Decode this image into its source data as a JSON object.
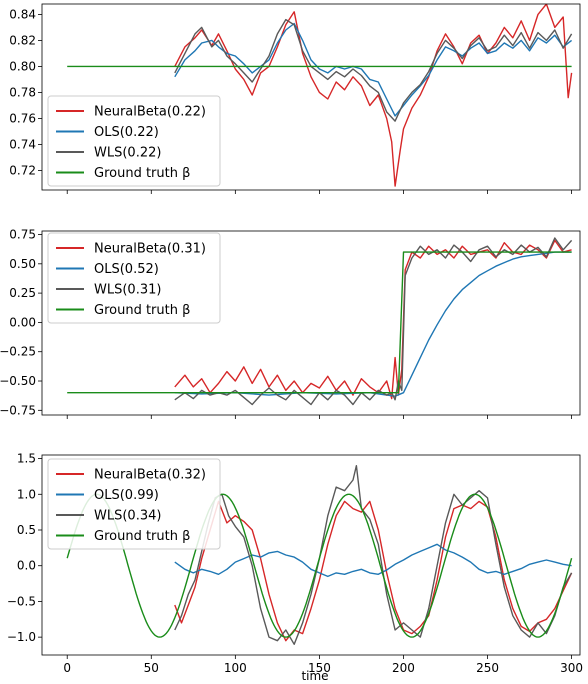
{
  "colors": {
    "neuralbeta": "#d62728",
    "ols": "#1f77b4",
    "wls": "#595959",
    "ground_truth": "#1a8c1a"
  },
  "chart_data": [
    {
      "type": "line",
      "xlabel": "",
      "ylabel": "",
      "xlim": [
        -15,
        305
      ],
      "ylim": [
        0.705,
        0.848
      ],
      "xticks": [
        0,
        50,
        100,
        150,
        200,
        250,
        300
      ],
      "yticks": [
        0.72,
        0.74,
        0.76,
        0.78,
        0.8,
        0.82,
        0.84
      ],
      "ytick_labels": [
        "0.72",
        "0.74",
        "0.76",
        "0.78",
        "0.80",
        "0.82",
        "0.84"
      ],
      "legend_position": "lower-left",
      "grid": false,
      "series": [
        {
          "name": "NeuralBeta(0.22)",
          "key": "neuralbeta",
          "x": [
            64,
            70,
            76,
            80,
            86,
            90,
            95,
            100,
            105,
            110,
            115,
            120,
            125,
            130,
            135,
            140,
            145,
            150,
            155,
            160,
            165,
            170,
            175,
            180,
            185,
            190,
            193,
            195,
            198,
            200,
            205,
            210,
            215,
            220,
            225,
            230,
            235,
            240,
            245,
            250,
            255,
            260,
            265,
            270,
            275,
            280,
            285,
            290,
            295,
            298,
            300
          ],
          "y": [
            0.8,
            0.815,
            0.822,
            0.828,
            0.816,
            0.825,
            0.812,
            0.798,
            0.79,
            0.778,
            0.795,
            0.8,
            0.815,
            0.832,
            0.842,
            0.81,
            0.792,
            0.78,
            0.775,
            0.788,
            0.782,
            0.792,
            0.785,
            0.77,
            0.778,
            0.76,
            0.742,
            0.708,
            0.735,
            0.752,
            0.768,
            0.778,
            0.792,
            0.812,
            0.825,
            0.815,
            0.802,
            0.818,
            0.824,
            0.81,
            0.818,
            0.83,
            0.822,
            0.835,
            0.82,
            0.84,
            0.848,
            0.83,
            0.838,
            0.776,
            0.795
          ]
        },
        {
          "name": "OLS(0.22)",
          "key": "ols",
          "x": [
            64,
            70,
            76,
            80,
            86,
            90,
            95,
            100,
            105,
            110,
            115,
            120,
            125,
            130,
            135,
            140,
            145,
            150,
            155,
            160,
            165,
            170,
            175,
            180,
            185,
            190,
            195,
            200,
            205,
            210,
            215,
            220,
            225,
            230,
            235,
            240,
            245,
            250,
            255,
            260,
            265,
            270,
            275,
            280,
            285,
            290,
            295,
            300
          ],
          "y": [
            0.792,
            0.805,
            0.812,
            0.818,
            0.82,
            0.815,
            0.81,
            0.808,
            0.802,
            0.795,
            0.8,
            0.805,
            0.818,
            0.828,
            0.833,
            0.82,
            0.805,
            0.798,
            0.795,
            0.8,
            0.798,
            0.8,
            0.798,
            0.79,
            0.788,
            0.775,
            0.762,
            0.77,
            0.778,
            0.785,
            0.793,
            0.805,
            0.815,
            0.812,
            0.808,
            0.814,
            0.818,
            0.81,
            0.812,
            0.818,
            0.814,
            0.82,
            0.812,
            0.822,
            0.818,
            0.824,
            0.815,
            0.82
          ]
        },
        {
          "name": "WLS(0.22)",
          "key": "wls",
          "x": [
            64,
            70,
            76,
            80,
            86,
            90,
            95,
            100,
            105,
            110,
            115,
            120,
            125,
            130,
            135,
            140,
            145,
            150,
            155,
            160,
            165,
            170,
            175,
            180,
            185,
            190,
            195,
            200,
            205,
            210,
            215,
            220,
            225,
            230,
            235,
            240,
            245,
            250,
            255,
            260,
            265,
            270,
            275,
            280,
            285,
            290,
            295,
            300
          ],
          "y": [
            0.795,
            0.81,
            0.825,
            0.83,
            0.815,
            0.82,
            0.808,
            0.802,
            0.795,
            0.788,
            0.798,
            0.808,
            0.825,
            0.836,
            0.832,
            0.812,
            0.8,
            0.795,
            0.79,
            0.796,
            0.792,
            0.798,
            0.793,
            0.785,
            0.78,
            0.765,
            0.758,
            0.772,
            0.78,
            0.786,
            0.796,
            0.81,
            0.82,
            0.814,
            0.806,
            0.816,
            0.822,
            0.812,
            0.815,
            0.824,
            0.816,
            0.826,
            0.814,
            0.826,
            0.82,
            0.828,
            0.814,
            0.825
          ]
        },
        {
          "name": "Ground truth β",
          "key": "ground_truth",
          "x": [
            0,
            300
          ],
          "y": [
            0.8,
            0.8
          ]
        }
      ]
    },
    {
      "type": "line",
      "xlabel": "",
      "ylabel": "",
      "xlim": [
        -15,
        305
      ],
      "ylim": [
        -0.79,
        0.78
      ],
      "xticks": [
        0,
        50,
        100,
        150,
        200,
        250,
        300
      ],
      "yticks": [
        -0.75,
        -0.5,
        -0.25,
        0.0,
        0.25,
        0.5,
        0.75
      ],
      "ytick_labels": [
        "−0.75",
        "−0.50",
        "−0.25",
        "0.00",
        "0.25",
        "0.50",
        "0.75"
      ],
      "legend_position": "upper-left",
      "grid": false,
      "series": [
        {
          "name": "NeuralBeta(0.31)",
          "key": "neuralbeta",
          "x": [
            64,
            70,
            75,
            80,
            85,
            90,
            95,
            100,
            105,
            110,
            115,
            120,
            125,
            130,
            135,
            140,
            145,
            150,
            155,
            160,
            165,
            170,
            175,
            180,
            185,
            190,
            193,
            195,
            197,
            199,
            201,
            205,
            210,
            215,
            220,
            225,
            230,
            235,
            240,
            245,
            250,
            255,
            260,
            265,
            270,
            275,
            280,
            285,
            290,
            295,
            300
          ],
          "y": [
            -0.55,
            -0.45,
            -0.55,
            -0.48,
            -0.6,
            -0.52,
            -0.42,
            -0.5,
            -0.38,
            -0.52,
            -0.4,
            -0.55,
            -0.45,
            -0.58,
            -0.5,
            -0.6,
            -0.52,
            -0.56,
            -0.46,
            -0.58,
            -0.5,
            -0.62,
            -0.48,
            -0.55,
            -0.6,
            -0.5,
            -0.65,
            -0.3,
            -0.62,
            -0.4,
            0.45,
            0.6,
            0.55,
            0.65,
            0.58,
            0.62,
            0.55,
            0.65,
            0.58,
            0.6,
            0.62,
            0.55,
            0.68,
            0.6,
            0.58,
            0.66,
            0.62,
            0.55,
            0.7,
            0.6,
            0.62
          ]
        },
        {
          "name": "OLS(0.52)",
          "key": "ols",
          "x": [
            64,
            80,
            100,
            120,
            140,
            160,
            180,
            195,
            200,
            205,
            210,
            215,
            220,
            225,
            230,
            235,
            240,
            245,
            250,
            255,
            260,
            265,
            270,
            275,
            280,
            285,
            290,
            295,
            300
          ],
          "y": [
            -0.6,
            -0.61,
            -0.6,
            -0.62,
            -0.6,
            -0.61,
            -0.6,
            -0.63,
            -0.6,
            -0.45,
            -0.3,
            -0.15,
            -0.02,
            0.1,
            0.2,
            0.28,
            0.34,
            0.4,
            0.44,
            0.48,
            0.51,
            0.54,
            0.56,
            0.57,
            0.58,
            0.59,
            0.6,
            0.6,
            0.6
          ]
        },
        {
          "name": "WLS(0.31)",
          "key": "wls",
          "x": [
            64,
            70,
            75,
            80,
            85,
            90,
            95,
            100,
            105,
            110,
            115,
            120,
            125,
            130,
            135,
            140,
            145,
            150,
            155,
            160,
            165,
            170,
            175,
            180,
            185,
            190,
            193,
            195,
            197,
            199,
            201,
            205,
            210,
            215,
            220,
            225,
            230,
            235,
            240,
            245,
            250,
            255,
            260,
            265,
            270,
            275,
            280,
            285,
            290,
            295,
            300
          ],
          "y": [
            -0.66,
            -0.6,
            -0.65,
            -0.58,
            -0.62,
            -0.6,
            -0.62,
            -0.58,
            -0.64,
            -0.7,
            -0.62,
            -0.56,
            -0.62,
            -0.66,
            -0.58,
            -0.64,
            -0.7,
            -0.6,
            -0.66,
            -0.58,
            -0.62,
            -0.7,
            -0.6,
            -0.66,
            -0.58,
            -0.62,
            -0.6,
            -0.66,
            -0.5,
            -0.58,
            0.4,
            0.55,
            0.65,
            0.58,
            0.62,
            0.55,
            0.66,
            0.6,
            0.52,
            0.62,
            0.65,
            0.56,
            0.62,
            0.58,
            0.66,
            0.6,
            0.64,
            0.56,
            0.72,
            0.62,
            0.7
          ]
        },
        {
          "name": "Ground truth β",
          "key": "ground_truth",
          "x": [
            0,
            197,
            200,
            300
          ],
          "y": [
            -0.6,
            -0.6,
            0.6,
            0.6
          ]
        }
      ]
    },
    {
      "type": "line",
      "xlabel": "time",
      "ylabel": "",
      "xlim": [
        -15,
        305
      ],
      "ylim": [
        -1.25,
        1.55
      ],
      "xticks": [
        0,
        50,
        100,
        150,
        200,
        250,
        300
      ],
      "yticks": [
        -1.0,
        -0.5,
        0.0,
        0.5,
        1.0,
        1.5
      ],
      "ytick_labels": [
        "−1.0",
        "−0.5",
        "0.0",
        "0.5",
        "1.0",
        "1.5"
      ],
      "legend_position": "upper-left",
      "grid": false,
      "series": [
        {
          "name": "NeuralBeta(0.32)",
          "key": "neuralbeta",
          "x": [
            64,
            68,
            72,
            76,
            80,
            85,
            90,
            95,
            100,
            105,
            110,
            115,
            120,
            125,
            130,
            135,
            140,
            145,
            150,
            155,
            160,
            165,
            170,
            175,
            180,
            185,
            190,
            195,
            200,
            205,
            210,
            215,
            220,
            225,
            230,
            235,
            240,
            245,
            250,
            255,
            260,
            265,
            270,
            275,
            280,
            285,
            290,
            295,
            300
          ],
          "y": [
            -0.55,
            -0.8,
            -0.55,
            -0.3,
            0.1,
            0.5,
            0.9,
            0.6,
            0.7,
            0.62,
            0.5,
            0.1,
            -0.4,
            -0.8,
            -1.05,
            -0.9,
            -0.95,
            -0.6,
            -0.2,
            0.3,
            0.7,
            0.9,
            0.8,
            0.75,
            0.9,
            0.5,
            -0.1,
            -0.6,
            -0.9,
            -0.95,
            -0.85,
            -0.7,
            -0.2,
            0.4,
            0.8,
            0.85,
            0.8,
            0.9,
            0.82,
            0.4,
            -0.2,
            -0.6,
            -0.85,
            -0.92,
            -0.8,
            -0.75,
            -0.6,
            -0.35,
            -0.1
          ]
        },
        {
          "name": "OLS(0.99)",
          "key": "ols",
          "x": [
            64,
            70,
            75,
            80,
            85,
            90,
            95,
            100,
            105,
            110,
            115,
            120,
            125,
            130,
            135,
            140,
            145,
            150,
            155,
            160,
            165,
            170,
            175,
            180,
            185,
            190,
            195,
            200,
            205,
            210,
            215,
            220,
            225,
            230,
            235,
            240,
            245,
            250,
            255,
            260,
            265,
            270,
            275,
            280,
            285,
            290,
            295,
            300
          ],
          "y": [
            0.05,
            -0.05,
            -0.1,
            -0.05,
            -0.08,
            -0.12,
            -0.05,
            0.05,
            0.1,
            0.15,
            0.12,
            0.18,
            0.2,
            0.15,
            0.12,
            0.05,
            -0.05,
            -0.1,
            -0.15,
            -0.1,
            -0.12,
            -0.08,
            -0.05,
            -0.1,
            -0.12,
            -0.06,
            0.02,
            0.08,
            0.15,
            0.2,
            0.25,
            0.3,
            0.22,
            0.18,
            0.12,
            0.05,
            -0.05,
            -0.1,
            -0.08,
            -0.12,
            -0.08,
            -0.04,
            0.02,
            0.05,
            0.08,
            0.05,
            0.02,
            0.0
          ]
        },
        {
          "name": "WLS(0.34)",
          "key": "wls",
          "x": [
            64,
            68,
            72,
            76,
            80,
            84,
            88,
            92,
            96,
            100,
            105,
            110,
            115,
            120,
            125,
            130,
            135,
            140,
            145,
            150,
            155,
            160,
            165,
            170,
            172,
            175,
            180,
            185,
            190,
            195,
            200,
            205,
            210,
            215,
            220,
            225,
            230,
            235,
            240,
            245,
            250,
            255,
            260,
            265,
            270,
            275,
            280,
            285,
            290,
            295,
            300
          ],
          "y": [
            -0.9,
            -0.7,
            -0.4,
            -0.2,
            0.2,
            0.6,
            0.95,
            1.0,
            0.7,
            0.55,
            0.4,
            0.0,
            -0.6,
            -1.0,
            -1.05,
            -0.9,
            -1.1,
            -0.8,
            -0.4,
            0.1,
            0.7,
            1.1,
            1.05,
            1.2,
            1.4,
            0.8,
            0.65,
            0.3,
            -0.4,
            -0.9,
            -0.8,
            -0.9,
            -1.0,
            -0.6,
            0.0,
            0.6,
            1.0,
            0.85,
            0.95,
            1.05,
            0.95,
            0.3,
            -0.3,
            -0.7,
            -0.9,
            -1.0,
            -0.8,
            -0.95,
            -0.7,
            -0.3,
            -0.1
          ]
        },
        {
          "name": "Ground truth β",
          "key": "ground_truth",
          "sine": {
            "amplitude": 1.0,
            "period": 75,
            "phase_offset": 55,
            "x_start": 0,
            "x_end": 300
          },
          "x": [],
          "y": []
        }
      ]
    }
  ]
}
